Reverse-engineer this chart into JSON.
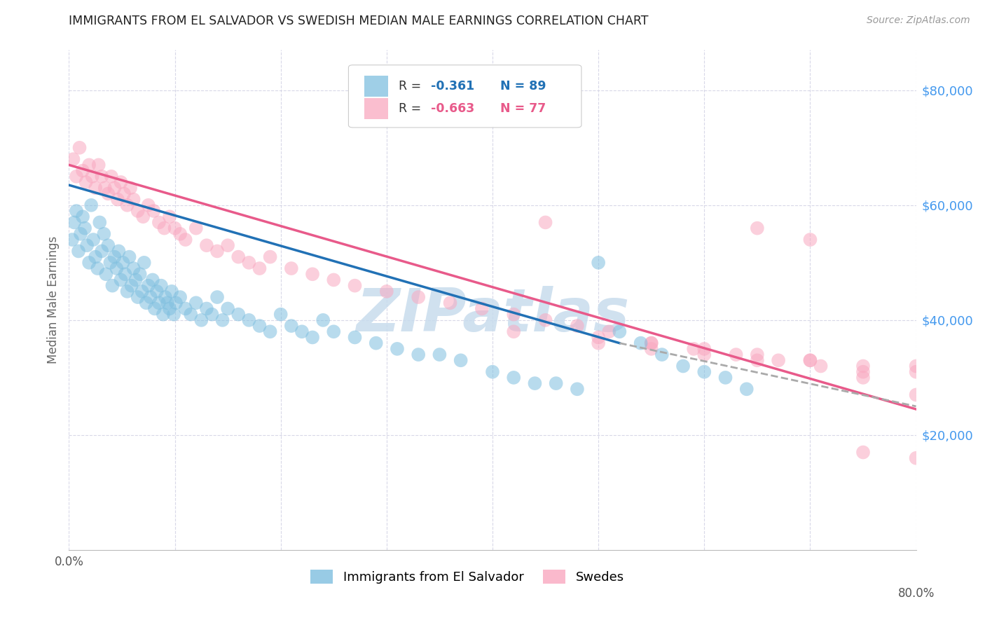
{
  "title": "IMMIGRANTS FROM EL SALVADOR VS SWEDISH MEDIAN MALE EARNINGS CORRELATION CHART",
  "source": "Source: ZipAtlas.com",
  "ylabel": "Median Male Earnings",
  "y_tick_labels": [
    "$20,000",
    "$40,000",
    "$60,000",
    "$80,000"
  ],
  "y_tick_values": [
    20000,
    40000,
    60000,
    80000
  ],
  "legend_label_blue": "Immigrants from El Salvador",
  "legend_label_pink": "Swedes",
  "blue_color": "#7fbfdf",
  "pink_color": "#f9a8c0",
  "blue_line_color": "#2171b5",
  "pink_line_color": "#e85a8a",
  "dashed_line_color": "#aaaaaa",
  "watermark": "ZIPatlas",
  "watermark_color": "#c8dced",
  "background_color": "#ffffff",
  "grid_color": "#d8d8e8",
  "title_color": "#222222",
  "right_axis_color": "#4499ee",
  "xlim": [
    0,
    80
  ],
  "ylim": [
    0,
    87000
  ],
  "blue_reg_x0": 0,
  "blue_reg_y0": 63500,
  "blue_reg_x1": 52,
  "blue_reg_y1": 36000,
  "dashed_x0": 52,
  "dashed_y0": 36000,
  "dashed_x1": 80,
  "dashed_y1": 25000,
  "pink_reg_x0": 0,
  "pink_reg_y0": 67000,
  "pink_reg_x1": 80,
  "pink_reg_y1": 24500,
  "blue_scatter_x": [
    0.3,
    0.5,
    0.7,
    0.9,
    1.1,
    1.3,
    1.5,
    1.7,
    1.9,
    2.1,
    2.3,
    2.5,
    2.7,
    2.9,
    3.1,
    3.3,
    3.5,
    3.7,
    3.9,
    4.1,
    4.3,
    4.5,
    4.7,
    4.9,
    5.1,
    5.3,
    5.5,
    5.7,
    5.9,
    6.1,
    6.3,
    6.5,
    6.7,
    6.9,
    7.1,
    7.3,
    7.5,
    7.7,
    7.9,
    8.1,
    8.3,
    8.5,
    8.7,
    8.9,
    9.1,
    9.3,
    9.5,
    9.7,
    9.9,
    10.1,
    10.5,
    11.0,
    11.5,
    12.0,
    12.5,
    13.0,
    13.5,
    14.0,
    14.5,
    15.0,
    16.0,
    17.0,
    18.0,
    19.0,
    20.0,
    21.0,
    22.0,
    23.0,
    24.0,
    25.0,
    27.0,
    29.0,
    31.0,
    33.0,
    35.0,
    37.0,
    40.0,
    42.0,
    44.0,
    46.0,
    48.0,
    50.0,
    52.0,
    54.0,
    56.0,
    58.0,
    60.0,
    62.0,
    64.0
  ],
  "blue_scatter_y": [
    54000,
    57000,
    59000,
    52000,
    55000,
    58000,
    56000,
    53000,
    50000,
    60000,
    54000,
    51000,
    49000,
    57000,
    52000,
    55000,
    48000,
    53000,
    50000,
    46000,
    51000,
    49000,
    52000,
    47000,
    50000,
    48000,
    45000,
    51000,
    46000,
    49000,
    47000,
    44000,
    48000,
    45000,
    50000,
    43000,
    46000,
    44000,
    47000,
    42000,
    45000,
    43000,
    46000,
    41000,
    44000,
    43000,
    42000,
    45000,
    41000,
    43000,
    44000,
    42000,
    41000,
    43000,
    40000,
    42000,
    41000,
    44000,
    40000,
    42000,
    41000,
    40000,
    39000,
    38000,
    41000,
    39000,
    38000,
    37000,
    40000,
    38000,
    37000,
    36000,
    35000,
    34000,
    34000,
    33000,
    31000,
    30000,
    29000,
    29000,
    28000,
    50000,
    38000,
    36000,
    34000,
    32000,
    31000,
    30000,
    28000
  ],
  "pink_scatter_x": [
    0.4,
    0.7,
    1.0,
    1.3,
    1.6,
    1.9,
    2.2,
    2.5,
    2.8,
    3.1,
    3.4,
    3.7,
    4.0,
    4.3,
    4.6,
    4.9,
    5.2,
    5.5,
    5.8,
    6.1,
    6.5,
    7.0,
    7.5,
    8.0,
    8.5,
    9.0,
    9.5,
    10.0,
    10.5,
    11.0,
    12.0,
    13.0,
    14.0,
    15.0,
    16.0,
    17.0,
    18.0,
    19.0,
    21.0,
    23.0,
    25.0,
    27.0,
    30.0,
    33.0,
    36.0,
    39.0,
    42.0,
    45.0,
    48.0,
    51.0,
    55.0,
    59.0,
    63.0,
    67.0,
    71.0,
    75.0,
    45.0,
    50.0,
    55.0,
    60.0,
    65.0,
    70.0,
    75.0,
    80.0,
    42.0,
    50.0,
    60.0,
    70.0,
    80.0,
    55.0,
    65.0,
    75.0,
    80.0,
    75.0,
    80.0,
    65.0,
    70.0
  ],
  "pink_scatter_y": [
    68000,
    65000,
    70000,
    66000,
    64000,
    67000,
    65000,
    63000,
    67000,
    65000,
    63000,
    62000,
    65000,
    63000,
    61000,
    64000,
    62000,
    60000,
    63000,
    61000,
    59000,
    58000,
    60000,
    59000,
    57000,
    56000,
    58000,
    56000,
    55000,
    54000,
    56000,
    53000,
    52000,
    53000,
    51000,
    50000,
    49000,
    51000,
    49000,
    48000,
    47000,
    46000,
    45000,
    44000,
    43000,
    42000,
    41000,
    40000,
    39000,
    38000,
    36000,
    35000,
    34000,
    33000,
    32000,
    31000,
    57000,
    37000,
    36000,
    35000,
    34000,
    33000,
    32000,
    31000,
    38000,
    36000,
    34000,
    33000,
    32000,
    35000,
    33000,
    30000,
    27000,
    17000,
    16000,
    56000,
    54000
  ]
}
